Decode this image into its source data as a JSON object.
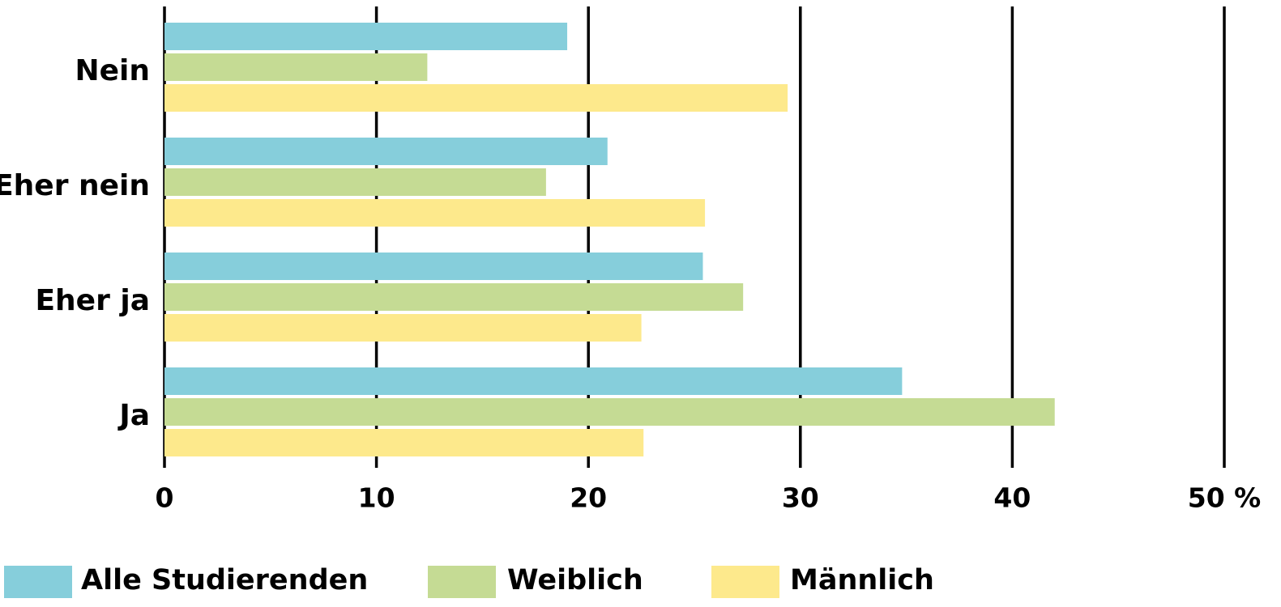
{
  "chart_data": {
    "type": "hbar",
    "categories": [
      "Nein",
      "Eher nein",
      "Eher ja",
      "Ja"
    ],
    "series": [
      {
        "name": "Alle Studierenden",
        "color": "#86cedb",
        "values": [
          19.0,
          20.9,
          25.4,
          34.8
        ]
      },
      {
        "name": "Weiblich",
        "color": "#c5db94",
        "values": [
          12.4,
          18.0,
          27.3,
          42.0
        ]
      },
      {
        "name": "Männlich",
        "color": "#fde98c",
        "values": [
          29.4,
          25.5,
          22.5,
          22.6
        ]
      }
    ],
    "xlim": [
      0,
      50
    ],
    "xticks": [
      0,
      10,
      20,
      30,
      40,
      {
        "value": 50,
        "label": "50 %"
      }
    ],
    "grid": true,
    "legend": "bottom"
  }
}
